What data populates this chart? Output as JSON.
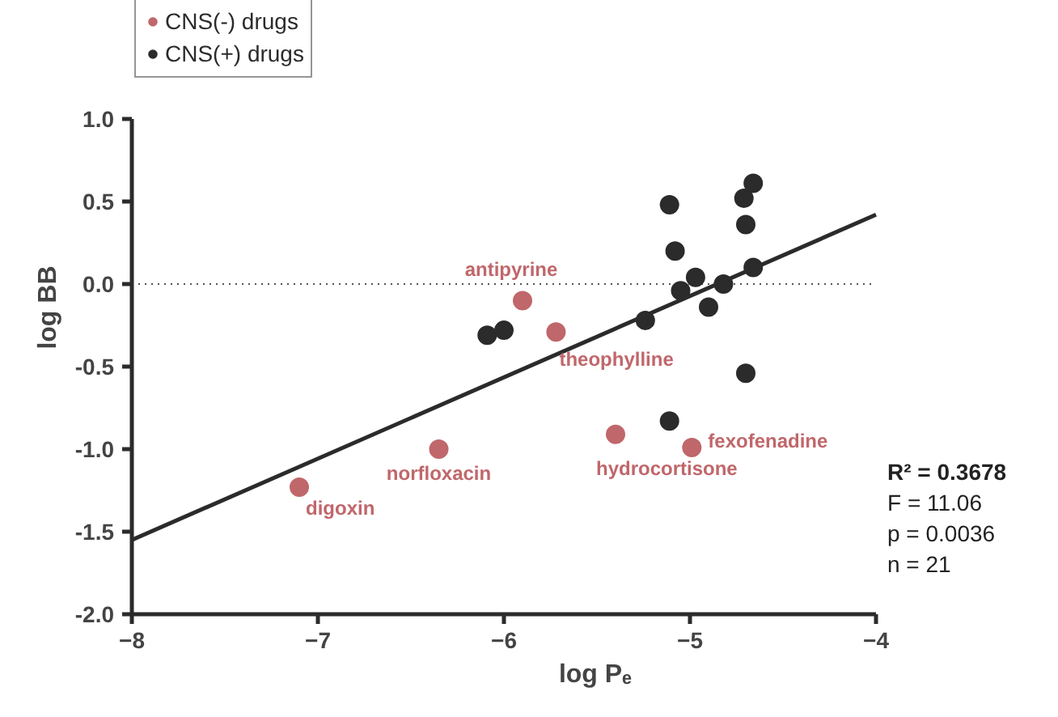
{
  "chart_data": {
    "type": "scatter",
    "xlabel": "log Pₑ",
    "ylabel": "log BB",
    "xlim": [
      -8,
      -4
    ],
    "ylim": [
      -2,
      1
    ],
    "xticks": [
      -8,
      -7,
      -6,
      -5,
      -4
    ],
    "yticks": [
      {
        "value": -2,
        "label": "-2.0"
      },
      {
        "value": -1.5,
        "label": "-1.5"
      },
      {
        "value": -1,
        "label": "-1.0"
      },
      {
        "value": -0.5,
        "label": "-0.5"
      },
      {
        "value": 0,
        "label": "0.0"
      },
      {
        "value": 0.5,
        "label": "0.5"
      },
      {
        "value": 1,
        "label": "1.0"
      }
    ],
    "grid": false,
    "legend": "top left",
    "marker": "circle",
    "series": [
      {
        "name": "CNS(-) drugs",
        "color": "#c0676b",
        "x": [
          -5.9,
          -5.72,
          -6.35,
          -7.1,
          -5.4,
          -4.99
        ],
        "values": [
          -0.1,
          -0.29,
          -1.0,
          -1.23,
          -0.91,
          -0.99
        ]
      },
      {
        "name": "CNS(+) drugs",
        "color": "#2b2b2b",
        "x": [
          -6.09,
          -6.0,
          -5.24,
          -5.11,
          -5.08,
          -5.05,
          -4.97,
          -4.9,
          -4.82,
          -5.11,
          -4.71,
          -4.66,
          -4.7,
          -4.66,
          -4.7
        ],
        "values": [
          -0.31,
          -0.28,
          -0.22,
          0.48,
          0.2,
          -0.04,
          0.04,
          -0.14,
          0.0,
          -0.83,
          0.52,
          0.61,
          0.36,
          0.1,
          -0.54
        ]
      },
      {
        "type": "line",
        "color": "#2b2b2b",
        "x": [
          -8,
          -4
        ],
        "values": [
          -1.55,
          0.42
        ],
        "marker": "none"
      }
    ],
    "ref_lines": [
      {
        "axis": "y",
        "value": 0,
        "label": null,
        "color": "#555555",
        "line_style": "dotted"
      }
    ],
    "annotations": [
      {
        "text": "antipyrine",
        "x": -5.9,
        "y": -0.1
      },
      {
        "text": "theophylline",
        "x": -5.72,
        "y": -0.29
      },
      {
        "text": "norfloxacin",
        "x": -6.35,
        "y": -1.0
      },
      {
        "text": "digoxin",
        "x": -7.1,
        "y": -1.23
      },
      {
        "text": "hydrocortisone",
        "x": -5.4,
        "y": -0.91
      },
      {
        "text": "fexofenadine",
        "x": -4.99,
        "y": -0.99
      },
      "R² = 0.3678",
      "F = 11.06",
      "p = 0.0036",
      "n = 21"
    ]
  }
}
